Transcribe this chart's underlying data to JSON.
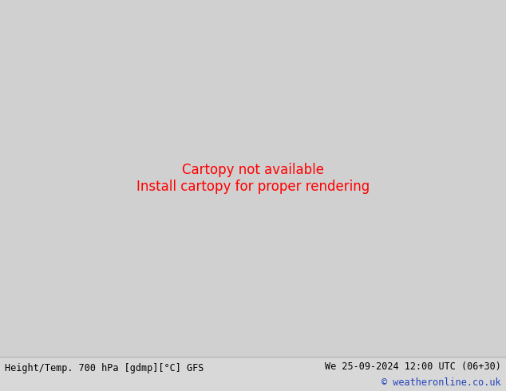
{
  "title_left": "Height/Temp. 700 hPa [gdmp][°C] GFS",
  "title_right": "We 25-09-2024 12:00 UTC (06+30)",
  "copyright": "© weatheronline.co.uk",
  "bg_color": "#d8d8d8",
  "land_color": "#c8c8c8",
  "ocean_color": "#e8e8e8",
  "green_color": "#b8eea0",
  "title_fontsize": 9,
  "copyright_color": "#2244bb",
  "bottom_bar_color": "#eeeeee",
  "label_fontsize": 7,
  "contour_black_color": "#000000",
  "contour_orange_color": "#ee7700",
  "contour_red_color": "#cc0000",
  "contour_magenta_color": "#cc0099"
}
